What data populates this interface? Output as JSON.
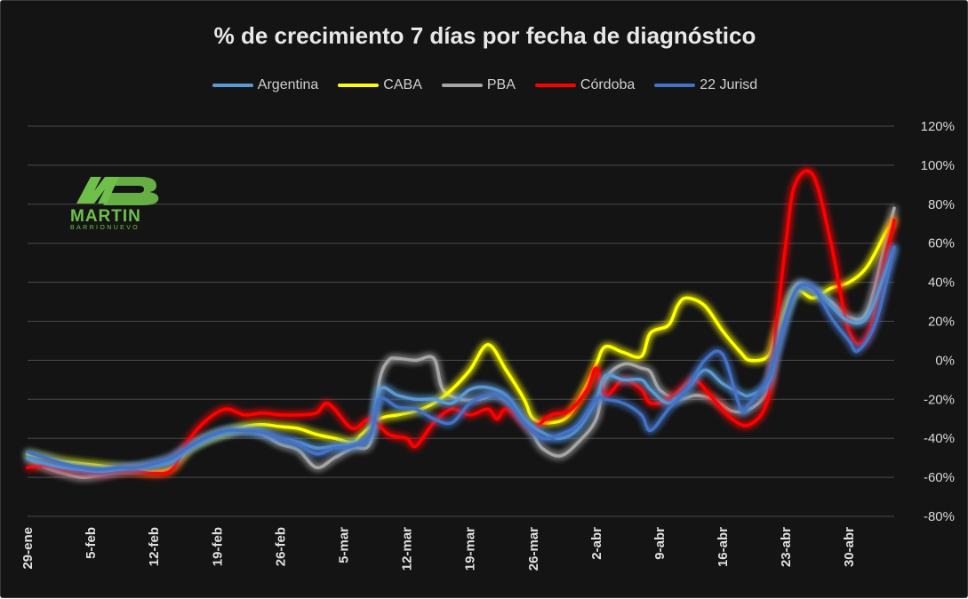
{
  "chart_data": {
    "type": "line",
    "title": "% de crecimiento 7 días por fecha de diagnóstico",
    "xlabel": "",
    "ylabel": "",
    "ylim": [
      -80,
      120
    ],
    "yticks": [
      -80,
      -60,
      -40,
      -20,
      0,
      20,
      40,
      60,
      80,
      100,
      120
    ],
    "ytick_labels": [
      "-80%",
      "-60%",
      "-40%",
      "-20%",
      "0%",
      "20%",
      "40%",
      "60%",
      "80%",
      "100%",
      "120%"
    ],
    "x_start_day": 0,
    "x_end_day": 96,
    "xticks": [
      {
        "label": "29-ene",
        "day": 0
      },
      {
        "label": "5-feb",
        "day": 7
      },
      {
        "label": "12-feb",
        "day": 14
      },
      {
        "label": "19-feb",
        "day": 21
      },
      {
        "label": "26-feb",
        "day": 28
      },
      {
        "label": "5-mar",
        "day": 35
      },
      {
        "label": "12-mar",
        "day": 42
      },
      {
        "label": "19-mar",
        "day": 49
      },
      {
        "label": "26-mar",
        "day": 56
      },
      {
        "label": "2-abr",
        "day": 63
      },
      {
        "label": "9-abr",
        "day": 70
      },
      {
        "label": "16-abr",
        "day": 77
      },
      {
        "label": "23-abr",
        "day": 84
      },
      {
        "label": "30-abr",
        "day": 91
      }
    ],
    "series": [
      {
        "name": "PBA",
        "color": "#a6a6a6",
        "points": [
          [
            0,
            -50
          ],
          [
            2,
            -55
          ],
          [
            4,
            -58
          ],
          [
            6,
            -60
          ],
          [
            8,
            -59
          ],
          [
            10,
            -57
          ],
          [
            12,
            -55
          ],
          [
            14,
            -53
          ],
          [
            16,
            -50
          ],
          [
            18,
            -44
          ],
          [
            20,
            -40
          ],
          [
            22,
            -37
          ],
          [
            24,
            -36
          ],
          [
            26,
            -38
          ],
          [
            28,
            -43
          ],
          [
            30,
            -46
          ],
          [
            32,
            -55
          ],
          [
            34,
            -50
          ],
          [
            36,
            -45
          ],
          [
            38,
            -42
          ],
          [
            39,
            -10
          ],
          [
            40,
            0
          ],
          [
            41,
            1
          ],
          [
            43,
            0
          ],
          [
            45,
            1
          ],
          [
            46,
            -15
          ],
          [
            48,
            -20
          ],
          [
            50,
            -20
          ],
          [
            52,
            -18
          ],
          [
            54,
            -25
          ],
          [
            56,
            -38
          ],
          [
            57,
            -45
          ],
          [
            59,
            -49
          ],
          [
            61,
            -42
          ],
          [
            63,
            -30
          ],
          [
            64,
            -10
          ],
          [
            66,
            -2
          ],
          [
            68,
            -4
          ],
          [
            69,
            -6
          ],
          [
            70,
            -15
          ],
          [
            72,
            -20
          ],
          [
            74,
            -18
          ],
          [
            76,
            -20
          ],
          [
            78,
            -26
          ],
          [
            80,
            -25
          ],
          [
            82,
            -15
          ],
          [
            83,
            10
          ],
          [
            85,
            38
          ],
          [
            87,
            36
          ],
          [
            89,
            30
          ],
          [
            91,
            22
          ],
          [
            93,
            25
          ],
          [
            95,
            60
          ],
          [
            96,
            78
          ]
        ]
      },
      {
        "name": "CABA",
        "color": "#ffff00",
        "points": [
          [
            0,
            -48
          ],
          [
            2,
            -50
          ],
          [
            4,
            -52
          ],
          [
            6,
            -53
          ],
          [
            8,
            -54
          ],
          [
            10,
            -55
          ],
          [
            12,
            -56
          ],
          [
            14,
            -57
          ],
          [
            16,
            -55
          ],
          [
            18,
            -45
          ],
          [
            20,
            -40
          ],
          [
            22,
            -37
          ],
          [
            24,
            -34
          ],
          [
            26,
            -33
          ],
          [
            28,
            -34
          ],
          [
            30,
            -35
          ],
          [
            32,
            -38
          ],
          [
            34,
            -40
          ],
          [
            36,
            -42
          ],
          [
            37,
            -38
          ],
          [
            39,
            -30
          ],
          [
            41,
            -28
          ],
          [
            43,
            -26
          ],
          [
            45,
            -22
          ],
          [
            47,
            -15
          ],
          [
            49,
            -5
          ],
          [
            51,
            8
          ],
          [
            53,
            -5
          ],
          [
            55,
            -20
          ],
          [
            56,
            -30
          ],
          [
            58,
            -32
          ],
          [
            60,
            -28
          ],
          [
            62,
            -12
          ],
          [
            63,
            -2
          ],
          [
            64,
            7
          ],
          [
            66,
            4
          ],
          [
            68,
            2
          ],
          [
            69,
            14
          ],
          [
            71,
            18
          ],
          [
            72,
            28
          ],
          [
            73,
            32
          ],
          [
            75,
            28
          ],
          [
            77,
            15
          ],
          [
            79,
            4
          ],
          [
            80,
            0
          ],
          [
            82,
            2
          ],
          [
            83,
            15
          ],
          [
            85,
            35
          ],
          [
            87,
            32
          ],
          [
            89,
            37
          ],
          [
            91,
            40
          ],
          [
            93,
            48
          ],
          [
            95,
            65
          ],
          [
            96,
            72
          ]
        ]
      },
      {
        "name": "Córdoba",
        "color": "#ff0000",
        "points": [
          [
            0,
            -55
          ],
          [
            2,
            -54
          ],
          [
            4,
            -56
          ],
          [
            6,
            -57
          ],
          [
            8,
            -58
          ],
          [
            10,
            -57
          ],
          [
            12,
            -57
          ],
          [
            14,
            -58
          ],
          [
            16,
            -56
          ],
          [
            18,
            -40
          ],
          [
            20,
            -30
          ],
          [
            22,
            -25
          ],
          [
            24,
            -28
          ],
          [
            26,
            -27
          ],
          [
            28,
            -28
          ],
          [
            30,
            -28
          ],
          [
            32,
            -27
          ],
          [
            33,
            -22
          ],
          [
            34,
            -25
          ],
          [
            36,
            -35
          ],
          [
            38,
            -30
          ],
          [
            40,
            -38
          ],
          [
            42,
            -40
          ],
          [
            43,
            -44
          ],
          [
            45,
            -32
          ],
          [
            47,
            -25
          ],
          [
            49,
            -28
          ],
          [
            51,
            -25
          ],
          [
            52,
            -30
          ],
          [
            53,
            -25
          ],
          [
            55,
            -32
          ],
          [
            56,
            -35
          ],
          [
            58,
            -28
          ],
          [
            60,
            -26
          ],
          [
            62,
            -15
          ],
          [
            63,
            -4
          ],
          [
            64,
            -18
          ],
          [
            66,
            -10
          ],
          [
            68,
            -15
          ],
          [
            69,
            -22
          ],
          [
            71,
            -20
          ],
          [
            73,
            -12
          ],
          [
            74,
            -10
          ],
          [
            76,
            -20
          ],
          [
            78,
            -30
          ],
          [
            80,
            -33
          ],
          [
            82,
            -20
          ],
          [
            83,
            20
          ],
          [
            84,
            60
          ],
          [
            85,
            90
          ],
          [
            87,
            95
          ],
          [
            89,
            60
          ],
          [
            91,
            15
          ],
          [
            93,
            12
          ],
          [
            95,
            50
          ],
          [
            96,
            72
          ]
        ]
      },
      {
        "name": "Argentina",
        "color": "#5b9bd5",
        "points": [
          [
            0,
            -50
          ],
          [
            2,
            -53
          ],
          [
            4,
            -55
          ],
          [
            6,
            -56
          ],
          [
            8,
            -57
          ],
          [
            10,
            -56
          ],
          [
            12,
            -55
          ],
          [
            14,
            -54
          ],
          [
            16,
            -52
          ],
          [
            18,
            -45
          ],
          [
            20,
            -40
          ],
          [
            22,
            -37
          ],
          [
            24,
            -36
          ],
          [
            26,
            -37
          ],
          [
            28,
            -40
          ],
          [
            30,
            -42
          ],
          [
            32,
            -45
          ],
          [
            34,
            -44
          ],
          [
            36,
            -43
          ],
          [
            38,
            -38
          ],
          [
            39,
            -15
          ],
          [
            41,
            -18
          ],
          [
            43,
            -20
          ],
          [
            45,
            -20
          ],
          [
            47,
            -22
          ],
          [
            49,
            -15
          ],
          [
            51,
            -14
          ],
          [
            53,
            -18
          ],
          [
            55,
            -30
          ],
          [
            57,
            -37
          ],
          [
            59,
            -40
          ],
          [
            61,
            -35
          ],
          [
            63,
            -20
          ],
          [
            64,
            -8
          ],
          [
            66,
            -10
          ],
          [
            68,
            -10
          ],
          [
            69,
            -15
          ],
          [
            71,
            -22
          ],
          [
            73,
            -15
          ],
          [
            75,
            -5
          ],
          [
            77,
            -12
          ],
          [
            79,
            -17
          ],
          [
            80,
            -18
          ],
          [
            82,
            -12
          ],
          [
            83,
            5
          ],
          [
            85,
            35
          ],
          [
            87,
            37
          ],
          [
            89,
            28
          ],
          [
            91,
            20
          ],
          [
            93,
            22
          ],
          [
            95,
            45
          ],
          [
            96,
            58
          ]
        ]
      },
      {
        "name": "22 Jurisd",
        "color": "#4472c4",
        "points": [
          [
            0,
            -47
          ],
          [
            2,
            -50
          ],
          [
            4,
            -53
          ],
          [
            6,
            -55
          ],
          [
            8,
            -56
          ],
          [
            10,
            -55
          ],
          [
            12,
            -55
          ],
          [
            14,
            -53
          ],
          [
            16,
            -50
          ],
          [
            18,
            -44
          ],
          [
            20,
            -39
          ],
          [
            22,
            -36
          ],
          [
            24,
            -36
          ],
          [
            26,
            -37
          ],
          [
            28,
            -40
          ],
          [
            30,
            -43
          ],
          [
            32,
            -48
          ],
          [
            34,
            -45
          ],
          [
            36,
            -44
          ],
          [
            38,
            -38
          ],
          [
            39,
            -20
          ],
          [
            41,
            -24
          ],
          [
            43,
            -25
          ],
          [
            45,
            -30
          ],
          [
            47,
            -32
          ],
          [
            49,
            -22
          ],
          [
            51,
            -18
          ],
          [
            53,
            -20
          ],
          [
            55,
            -32
          ],
          [
            57,
            -40
          ],
          [
            59,
            -38
          ],
          [
            61,
            -33
          ],
          [
            63,
            -20
          ],
          [
            64,
            -20
          ],
          [
            66,
            -22
          ],
          [
            68,
            -28
          ],
          [
            69,
            -36
          ],
          [
            71,
            -25
          ],
          [
            73,
            -15
          ],
          [
            75,
            0
          ],
          [
            77,
            3
          ],
          [
            79,
            -25
          ],
          [
            80,
            -22
          ],
          [
            82,
            -10
          ],
          [
            83,
            5
          ],
          [
            85,
            35
          ],
          [
            87,
            37
          ],
          [
            89,
            22
          ],
          [
            91,
            10
          ],
          [
            92,
            5
          ],
          [
            94,
            20
          ],
          [
            96,
            58
          ]
        ]
      }
    ],
    "legend": [
      "Argentina",
      "CABA",
      "PBA",
      "Córdoba",
      "22 Jurisd"
    ],
    "legend_position": "top-center",
    "grid": true
  },
  "legend_items": [
    {
      "label": "Argentina",
      "color": "#5b9bd5"
    },
    {
      "label": "CABA",
      "color": "#ffff00"
    },
    {
      "label": "PBA",
      "color": "#a6a6a6"
    },
    {
      "label": "Córdoba",
      "color": "#ff0000"
    },
    {
      "label": "22 Jurisd",
      "color": "#4472c4"
    }
  ],
  "logo": {
    "name": "MARTIN",
    "sub": "BARRIONUEVO"
  }
}
